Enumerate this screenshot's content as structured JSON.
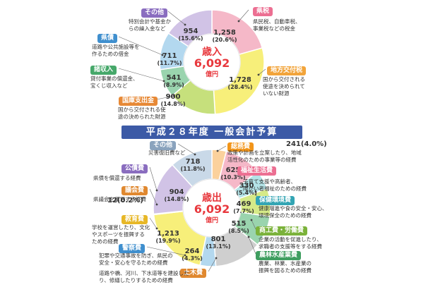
{
  "title": "平成２８年度 一般会計予算",
  "chart_data": [
    {
      "type": "pie",
      "center_label": "歳入",
      "center_total": "6,092",
      "center_unit": "億円",
      "total": 6092,
      "unit": "億円",
      "slices": [
        {
          "name": "県税",
          "value": 1258,
          "value_label": "1,258",
          "pct": "20.6%",
          "color": "#f5b8c8",
          "label_color": "#ec6f92",
          "desc": [
            "県民税、自動車税、",
            "事業税などの税金"
          ]
        },
        {
          "name": "地方交付税",
          "value": 1728,
          "value_label": "1,728",
          "pct": "28.4%",
          "color": "#f7ef7a",
          "label_color": "#f2a43a",
          "desc": [
            "国から交付される",
            "使途を決められて",
            "いない財源"
          ]
        },
        {
          "name": "国庫支出金",
          "value": 900,
          "value_label": "900",
          "pct": "14.8%",
          "color": "#c6e07c",
          "label_color": "#e78936",
          "desc": [
            "国から交付される使",
            "途の決められた財源"
          ]
        },
        {
          "name": "諸収入",
          "value": 541,
          "value_label": "541",
          "pct": "8.9%",
          "color": "#9ad4ae",
          "label_color": "#46a86a",
          "desc": [
            "貸付事業の償還金、",
            "宝くじ収入など"
          ]
        },
        {
          "name": "県債",
          "value": 711,
          "value_label": "711",
          "pct": "11.7%",
          "color": "#b3d8ef",
          "label_color": "#3f8fce",
          "desc": [
            "道路や公共施設等を",
            "作るための借金"
          ]
        },
        {
          "name": "その他",
          "value": 954,
          "value_label": "954",
          "pct": "15.6%",
          "color": "#d1c3e6",
          "label_color": "#8a6dbf",
          "desc": [
            "特別会計や基金か",
            "らの繰入金など"
          ]
        }
      ]
    },
    {
      "type": "pie",
      "center_label": "歳出",
      "center_total": "6,092",
      "center_unit": "億円",
      "total": 6092,
      "unit": "億円",
      "slices": [
        {
          "name": "総務費",
          "value": 241,
          "value_label": "241",
          "pct": "4.0%",
          "color": "#fbd19c",
          "label_color": "#f2951a",
          "desc": [
            "政策や計画を立案したり、地域",
            "活性化のための事業等の経費"
          ]
        },
        {
          "name": "福祉生活費",
          "value": 625,
          "value_label": "625",
          "pct": "10.3%",
          "color": "#f5b8c8",
          "label_color": "#ec6f92",
          "desc": [
            "子育て支援や高齢者、",
            "障がい者福祉のための経費"
          ]
        },
        {
          "name": "保健環境費",
          "value": 330,
          "value_label": "330",
          "pct": "5.4%",
          "color": "#b3e3e7",
          "label_color": "#33a5b4",
          "desc": [
            "健康増進や食の安全・安心、",
            "環境保全のための経費"
          ]
        },
        {
          "name": "商工費・労働費",
          "value": 469,
          "value_label": "469",
          "pct": "7.7%",
          "color": "#d6ea88",
          "label_color": "#7bb23a",
          "desc": [
            "企業の活動を促進したり、",
            "求職者の支援等をする経費"
          ]
        },
        {
          "name": "農林水産業費",
          "value": 515,
          "value_label": "515",
          "pct": "8.5%",
          "color": "#9ad4ae",
          "label_color": "#3f9e60",
          "desc": [
            "農業、林業、水産業の",
            "振興を図るための経費"
          ]
        },
        {
          "name": "土木費",
          "value": 801,
          "value_label": "801",
          "pct": "13.1%",
          "color": "#cfcfcf",
          "label_color": "#e0882f",
          "desc": [
            "道路や橋、河川、下水道等を建設した",
            "り、修繕したりするための経費"
          ]
        },
        {
          "name": "警察費",
          "value": 264,
          "value_label": "264",
          "pct": "4.3%",
          "color": "#b3d8ef",
          "label_color": "#3f8fce",
          "desc": [
            "犯罪や交通事故を防ぎ、県民の",
            "安全・安心を守るための経費"
          ]
        },
        {
          "name": "教育費",
          "value": 1213,
          "value_label": "1,213",
          "pct": "19.9%",
          "color": "#f7ef7a",
          "label_color": "#e7b726",
          "desc": [
            "学校を運営したり、文化",
            "やスポーツを振興する",
            "ための経費"
          ]
        },
        {
          "name": "議会費",
          "value": 12,
          "value_label": "12",
          "pct": "0.2%",
          "color": "#f5a05a",
          "label_color": "#e0882f",
          "desc": [
            "県議会を運営する経費"
          ]
        },
        {
          "name": "公債費",
          "value": 904,
          "value_label": "904",
          "pct": "14.8%",
          "color": "#d1c3e6",
          "label_color": "#8a6dbf",
          "desc": [
            "県債を償還する経費"
          ]
        },
        {
          "name": "その他",
          "value": 718,
          "value_label": "718",
          "pct": "11.8%",
          "color": "#c9d9e8",
          "label_color": "#8aa3bd",
          "desc": [
            "災害復旧費など"
          ]
        }
      ]
    }
  ]
}
